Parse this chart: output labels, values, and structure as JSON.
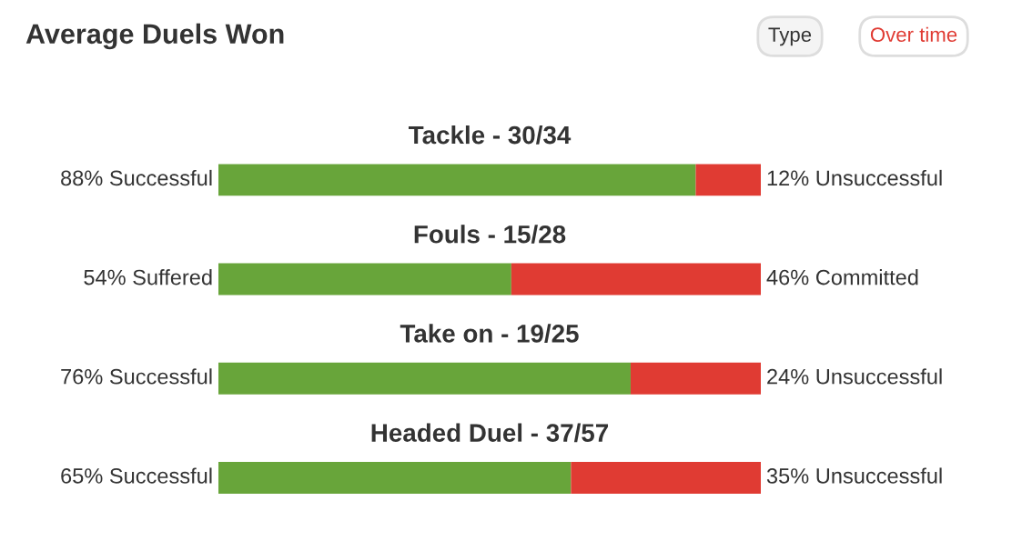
{
  "chart_data": {
    "type": "bar",
    "title": "Average Duels Won",
    "orientation": "horizontal",
    "stacked": true,
    "legend": false,
    "categories": [
      "Tackle - 30/34",
      "Fouls - 15/28",
      "Take on - 19/25",
      "Headed Duel - 37/57"
    ],
    "series": [
      {
        "color": "#68a53a",
        "values": [
          88,
          54,
          76,
          65
        ],
        "value_labels": [
          "88% Successful",
          "54% Suffered",
          "76% Successful",
          "65% Successful"
        ]
      },
      {
        "color": "#e03b33",
        "values": [
          12,
          46,
          24,
          35
        ],
        "value_labels": [
          "12% Unsuccessful",
          "46% Committed",
          "24% Unsuccessful",
          "35% Unsuccessful"
        ]
      }
    ],
    "annotations": [
      "Type",
      "Over time"
    ]
  }
}
